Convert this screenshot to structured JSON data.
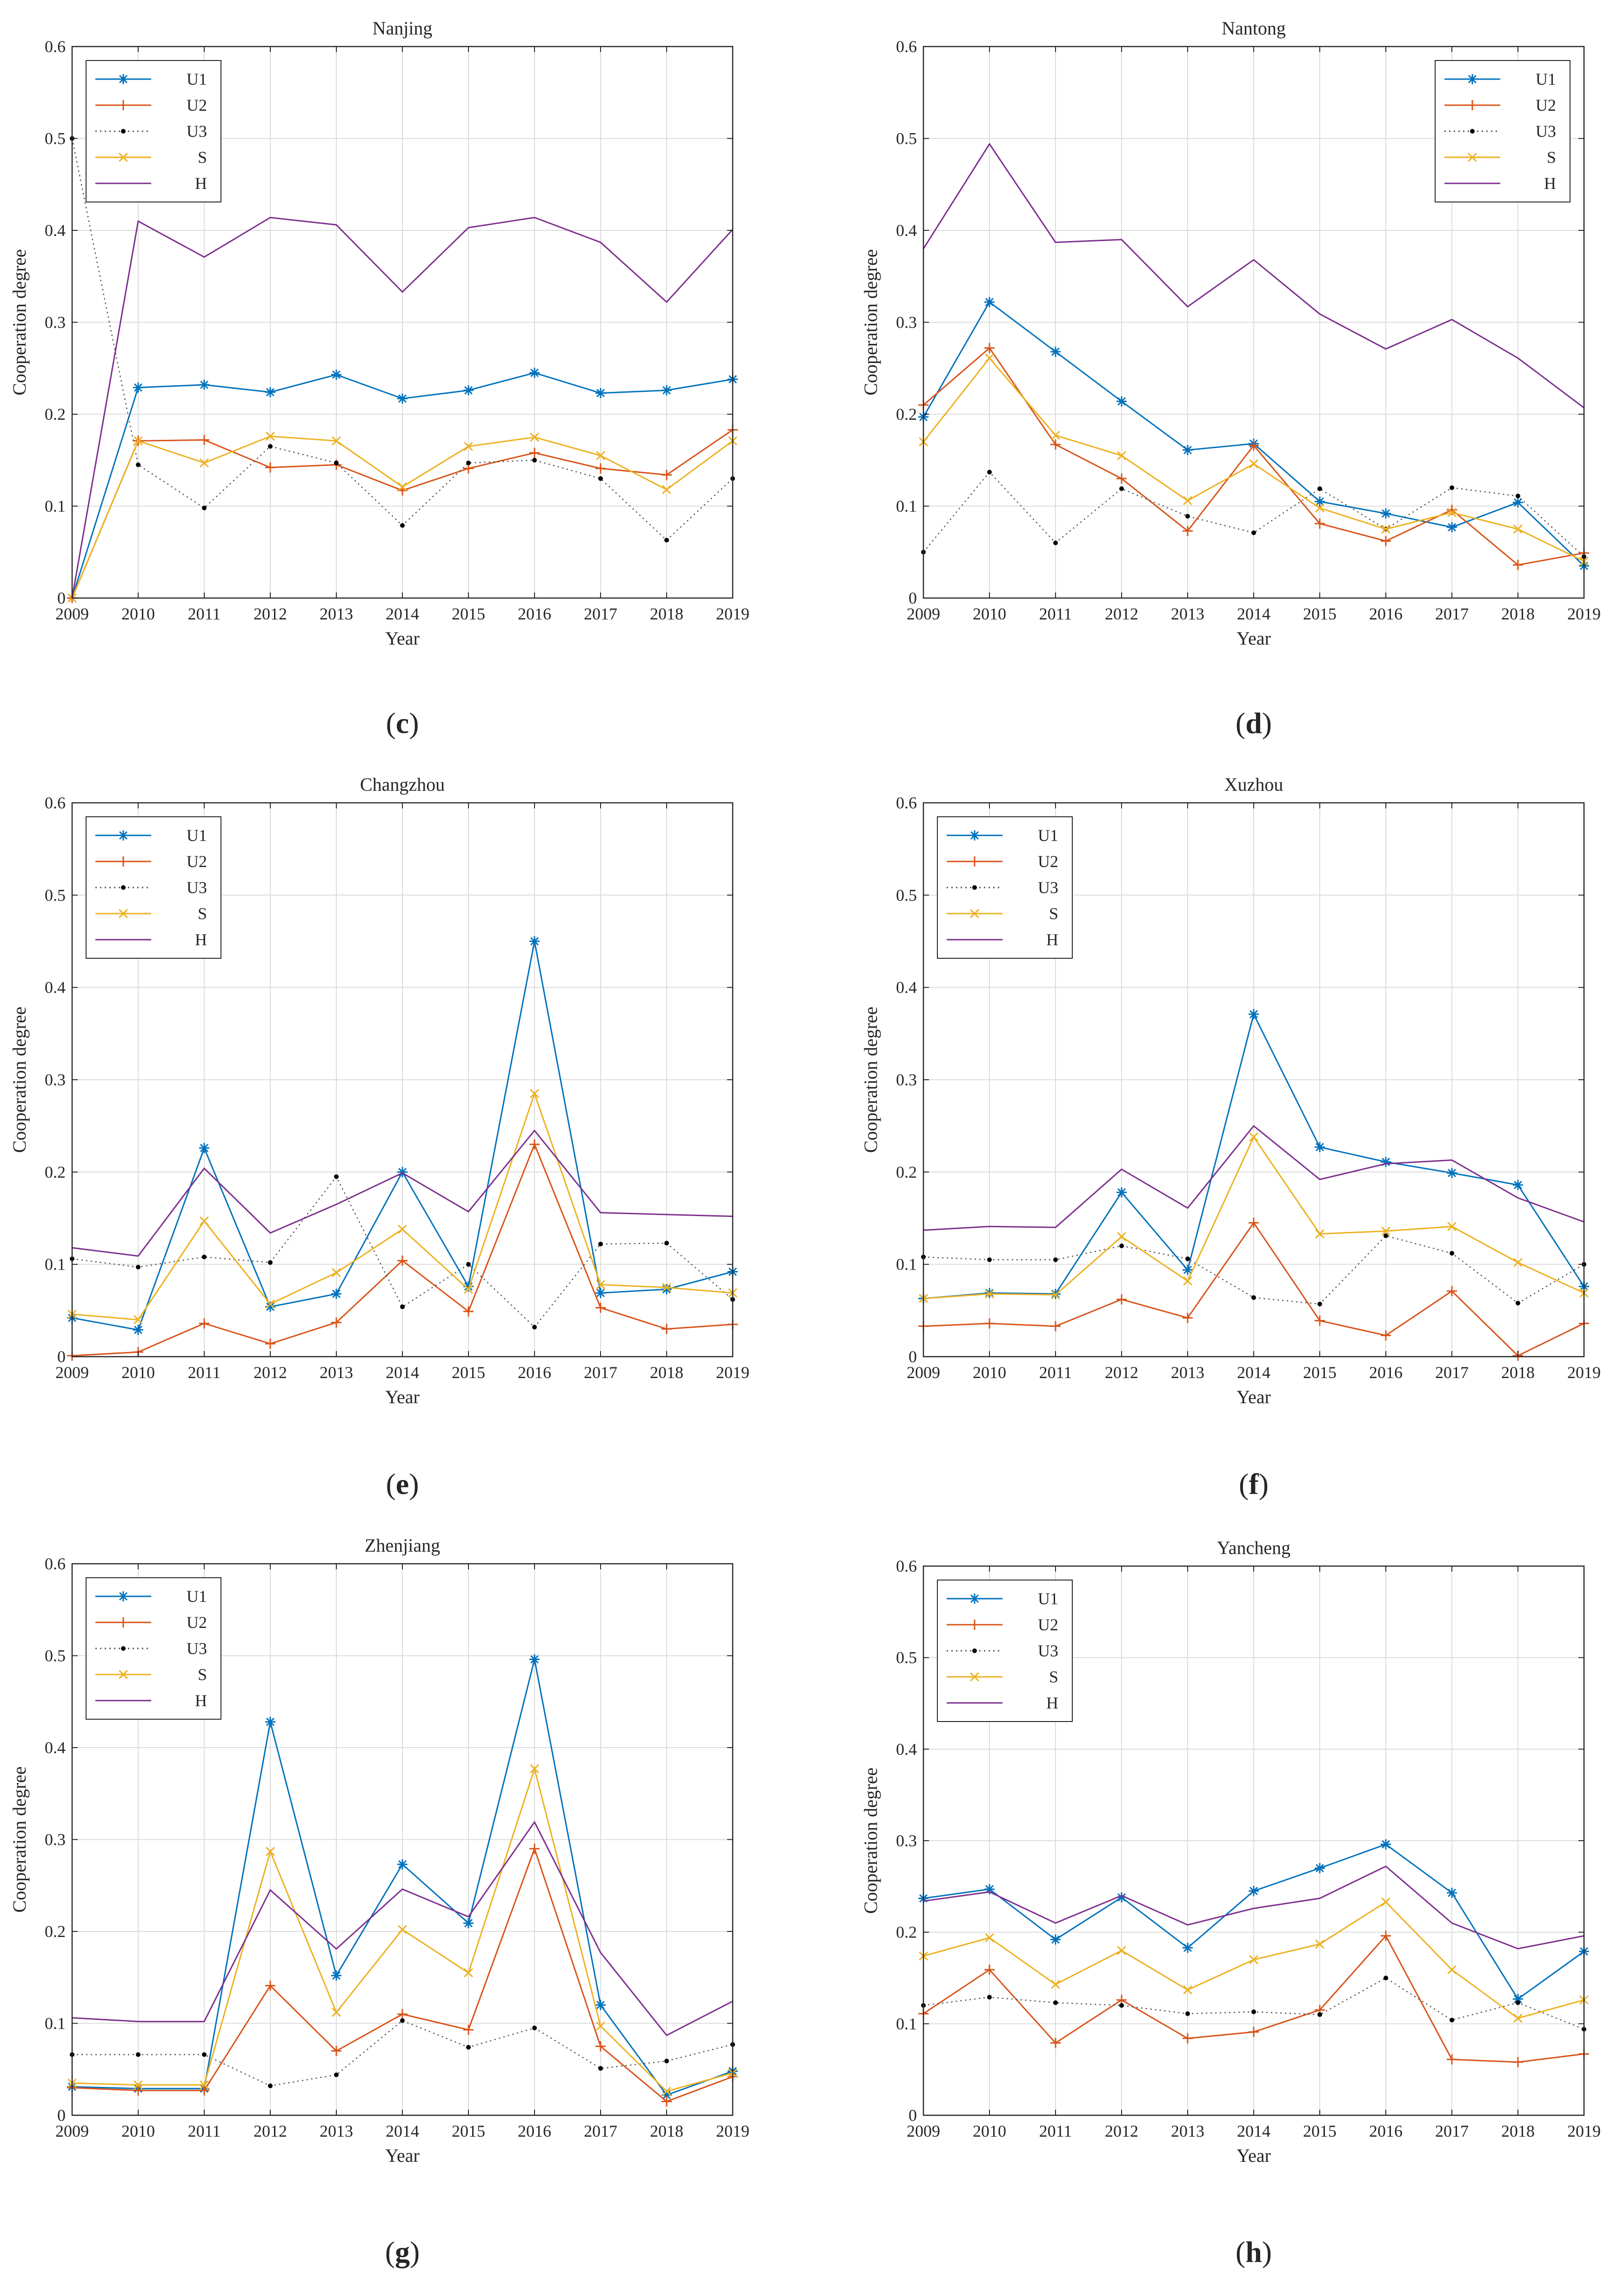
{
  "figure_description": "Cooperation degree of U1, U2, U3, S and H for six Jiangsu cities, 2009-2019",
  "series_colors": {
    "U1": "#0072BD",
    "U2": "#D95319",
    "U3": "#000000",
    "S": "#EDB120",
    "H": "#7E2F8E"
  },
  "series_markers": {
    "U1": "asterisk",
    "U2": "plus",
    "U3": "dot",
    "S": "x",
    "H": "none"
  },
  "chart_data": [
    {
      "type": "line",
      "title": "Nanjing",
      "caption_letter": "c",
      "xlabel": "Year",
      "ylabel": "Cooperation degree",
      "x": [
        2009,
        2010,
        2011,
        2012,
        2013,
        2014,
        2015,
        2016,
        2017,
        2018,
        2019
      ],
      "xticks": [
        "2009",
        "2010",
        "2011",
        "2012",
        "2013",
        "2014",
        "2015",
        "2016",
        "2017",
        "2018",
        "2019"
      ],
      "yticks": [
        "0",
        "0.1",
        "0.2",
        "0.3",
        "0.4",
        "0.5",
        "0.6"
      ],
      "xlim": [
        2009,
        2019
      ],
      "ylim": [
        0,
        0.6
      ],
      "grid": true,
      "legend_position": "top-left",
      "series": [
        {
          "name": "U1",
          "values": [
            0.0,
            0.229,
            0.232,
            0.224,
            0.243,
            0.217,
            0.226,
            0.245,
            0.223,
            0.226,
            0.238
          ]
        },
        {
          "name": "U2",
          "values": [
            0.0,
            0.171,
            0.172,
            0.142,
            0.145,
            0.117,
            0.141,
            0.158,
            0.141,
            0.134,
            0.183
          ]
        },
        {
          "name": "U3",
          "values": [
            0.5,
            0.145,
            0.098,
            0.165,
            0.147,
            0.079,
            0.147,
            0.15,
            0.13,
            0.063,
            0.13
          ]
        },
        {
          "name": "S",
          "values": [
            0.0,
            0.171,
            0.147,
            0.176,
            0.171,
            0.121,
            0.165,
            0.175,
            0.155,
            0.118,
            0.171
          ]
        },
        {
          "name": "H",
          "values": [
            0.0,
            0.41,
            0.371,
            0.414,
            0.406,
            0.333,
            0.403,
            0.414,
            0.387,
            0.322,
            0.401
          ]
        }
      ]
    },
    {
      "type": "line",
      "title": "Nantong",
      "caption_letter": "d",
      "xlabel": "Year",
      "ylabel": "Cooperation degree",
      "x": [
        2009,
        2010,
        2011,
        2012,
        2013,
        2014,
        2015,
        2016,
        2017,
        2018,
        2019
      ],
      "xticks": [
        "2009",
        "2010",
        "2011",
        "2012",
        "2013",
        "2014",
        "2015",
        "2016",
        "2017",
        "2018",
        "2019"
      ],
      "yticks": [
        "0",
        "0.1",
        "0.2",
        "0.3",
        "0.4",
        "0.5",
        "0.6"
      ],
      "xlim": [
        2009,
        2019
      ],
      "ylim": [
        0,
        0.6
      ],
      "grid": true,
      "legend_position": "top-right",
      "series": [
        {
          "name": "U1",
          "values": [
            0.197,
            0.322,
            0.268,
            0.214,
            0.161,
            0.168,
            0.105,
            0.092,
            0.077,
            0.104,
            0.035
          ]
        },
        {
          "name": "U2",
          "values": [
            0.21,
            0.272,
            0.167,
            0.13,
            0.073,
            0.166,
            0.081,
            0.062,
            0.096,
            0.036,
            0.049
          ]
        },
        {
          "name": "U3",
          "values": [
            0.05,
            0.137,
            0.06,
            0.119,
            0.089,
            0.071,
            0.119,
            0.075,
            0.12,
            0.111,
            0.045
          ]
        },
        {
          "name": "S",
          "values": [
            0.17,
            0.261,
            0.177,
            0.155,
            0.106,
            0.146,
            0.098,
            0.075,
            0.093,
            0.075,
            0.04
          ]
        },
        {
          "name": "H",
          "values": [
            0.38,
            0.494,
            0.387,
            0.39,
            0.317,
            0.368,
            0.309,
            0.271,
            0.303,
            0.261,
            0.207
          ]
        }
      ]
    },
    {
      "type": "line",
      "title": "Changzhou",
      "caption_letter": "e",
      "xlabel": "Year",
      "ylabel": "Cooperation degree",
      "x": [
        2009,
        2010,
        2011,
        2012,
        2013,
        2014,
        2015,
        2016,
        2017,
        2018,
        2019
      ],
      "xticks": [
        "2009",
        "2010",
        "2011",
        "2012",
        "2013",
        "2014",
        "2015",
        "2016",
        "2017",
        "2018",
        "2019"
      ],
      "yticks": [
        "0",
        "0.1",
        "0.2",
        "0.3",
        "0.4",
        "0.5",
        "0.6"
      ],
      "xlim": [
        2009,
        2019
      ],
      "ylim": [
        0,
        0.6
      ],
      "grid": true,
      "legend_position": "top-left",
      "series": [
        {
          "name": "U1",
          "values": [
            0.042,
            0.029,
            0.226,
            0.054,
            0.068,
            0.2,
            0.076,
            0.45,
            0.069,
            0.073,
            0.092
          ]
        },
        {
          "name": "U2",
          "values": [
            0.001,
            0.005,
            0.036,
            0.014,
            0.037,
            0.104,
            0.049,
            0.23,
            0.053,
            0.03,
            0.035
          ]
        },
        {
          "name": "U3",
          "values": [
            0.106,
            0.097,
            0.108,
            0.102,
            0.195,
            0.054,
            0.1,
            0.032,
            0.122,
            0.123,
            0.062
          ]
        },
        {
          "name": "S",
          "values": [
            0.046,
            0.04,
            0.147,
            0.057,
            0.091,
            0.138,
            0.073,
            0.285,
            0.078,
            0.075,
            0.069
          ]
        },
        {
          "name": "H",
          "values": [
            0.118,
            0.109,
            0.204,
            0.134,
            0.165,
            0.199,
            0.157,
            0.245,
            0.156,
            0.154,
            0.152
          ]
        }
      ]
    },
    {
      "type": "line",
      "title": "Xuzhou",
      "caption_letter": "f",
      "xlabel": "Year",
      "ylabel": "Cooperation degree",
      "x": [
        2009,
        2010,
        2011,
        2012,
        2013,
        2014,
        2015,
        2016,
        2017,
        2018,
        2019
      ],
      "xticks": [
        "2009",
        "2010",
        "2011",
        "2012",
        "2013",
        "2014",
        "2015",
        "2016",
        "2017",
        "2018",
        "2019"
      ],
      "yticks": [
        "0",
        "0.1",
        "0.2",
        "0.3",
        "0.4",
        "0.5",
        "0.6"
      ],
      "xlim": [
        2009,
        2019
      ],
      "ylim": [
        0,
        0.6
      ],
      "grid": true,
      "legend_position": "top-left",
      "series": [
        {
          "name": "U1",
          "values": [
            0.063,
            0.069,
            0.068,
            0.178,
            0.094,
            0.371,
            0.227,
            0.211,
            0.199,
            0.186,
            0.076
          ]
        },
        {
          "name": "U2",
          "values": [
            0.033,
            0.036,
            0.033,
            0.062,
            0.042,
            0.145,
            0.039,
            0.023,
            0.071,
            0.001,
            0.036
          ]
        },
        {
          "name": "U3",
          "values": [
            0.108,
            0.105,
            0.105,
            0.12,
            0.106,
            0.064,
            0.057,
            0.131,
            0.112,
            0.058,
            0.1
          ]
        },
        {
          "name": "S",
          "values": [
            0.063,
            0.068,
            0.067,
            0.13,
            0.082,
            0.238,
            0.133,
            0.136,
            0.141,
            0.102,
            0.069
          ]
        },
        {
          "name": "H",
          "values": [
            0.137,
            0.141,
            0.14,
            0.203,
            0.161,
            0.25,
            0.192,
            0.209,
            0.213,
            0.172,
            0.146
          ]
        }
      ]
    },
    {
      "type": "line",
      "title": "Zhenjiang",
      "caption_letter": "g",
      "xlabel": "Year",
      "ylabel": "Cooperation degree",
      "x": [
        2009,
        2010,
        2011,
        2012,
        2013,
        2014,
        2015,
        2016,
        2017,
        2018,
        2019
      ],
      "xticks": [
        "2009",
        "2010",
        "2011",
        "2012",
        "2013",
        "2014",
        "2015",
        "2016",
        "2017",
        "2018",
        "2019"
      ],
      "yticks": [
        "0",
        "0.1",
        "0.2",
        "0.3",
        "0.4",
        "0.5",
        "0.6"
      ],
      "xlim": [
        2009,
        2019
      ],
      "ylim": [
        0,
        0.6
      ],
      "grid": true,
      "legend_position": "top-left",
      "series": [
        {
          "name": "U1",
          "values": [
            0.031,
            0.029,
            0.029,
            0.428,
            0.152,
            0.273,
            0.209,
            0.496,
            0.12,
            0.022,
            0.048
          ]
        },
        {
          "name": "U2",
          "values": [
            0.03,
            0.027,
            0.027,
            0.141,
            0.07,
            0.11,
            0.093,
            0.29,
            0.075,
            0.015,
            0.042
          ]
        },
        {
          "name": "U3",
          "values": [
            0.066,
            0.066,
            0.066,
            0.032,
            0.044,
            0.103,
            0.074,
            0.095,
            0.051,
            0.059,
            0.077
          ]
        },
        {
          "name": "S",
          "values": [
            0.035,
            0.033,
            0.033,
            0.287,
            0.112,
            0.202,
            0.155,
            0.377,
            0.097,
            0.026,
            0.046
          ]
        },
        {
          "name": "H",
          "values": [
            0.106,
            0.102,
            0.102,
            0.245,
            0.181,
            0.246,
            0.216,
            0.319,
            0.177,
            0.087,
            0.124
          ]
        }
      ]
    },
    {
      "type": "line",
      "title": "Yancheng",
      "caption_letter": "h",
      "xlabel": "Year",
      "ylabel": "Cooperation degree",
      "x": [
        2009,
        2010,
        2011,
        2012,
        2013,
        2014,
        2015,
        2016,
        2017,
        2018,
        2019
      ],
      "xticks": [
        "2009",
        "2010",
        "2011",
        "2012",
        "2013",
        "2014",
        "2015",
        "2016",
        "2017",
        "2018",
        "2019"
      ],
      "yticks": [
        "0",
        "0.1",
        "0.2",
        "0.3",
        "0.4",
        "0.5",
        "0.6"
      ],
      "xlim": [
        2009,
        2019
      ],
      "ylim": [
        0,
        0.6
      ],
      "grid": true,
      "legend_position": "top-left",
      "series": [
        {
          "name": "U1",
          "values": [
            0.237,
            0.247,
            0.192,
            0.238,
            0.183,
            0.245,
            0.27,
            0.296,
            0.243,
            0.127,
            0.179
          ]
        },
        {
          "name": "U2",
          "values": [
            0.111,
            0.159,
            0.079,
            0.126,
            0.084,
            0.091,
            0.115,
            0.196,
            0.061,
            0.058,
            0.067
          ]
        },
        {
          "name": "U3",
          "values": [
            0.12,
            0.129,
            0.123,
            0.12,
            0.111,
            0.113,
            0.11,
            0.15,
            0.104,
            0.123,
            0.094
          ]
        },
        {
          "name": "S",
          "values": [
            0.174,
            0.194,
            0.143,
            0.18,
            0.137,
            0.17,
            0.187,
            0.233,
            0.159,
            0.106,
            0.126
          ]
        },
        {
          "name": "H",
          "values": [
            0.234,
            0.244,
            0.21,
            0.24,
            0.208,
            0.226,
            0.237,
            0.272,
            0.21,
            0.182,
            0.196
          ]
        }
      ]
    }
  ]
}
